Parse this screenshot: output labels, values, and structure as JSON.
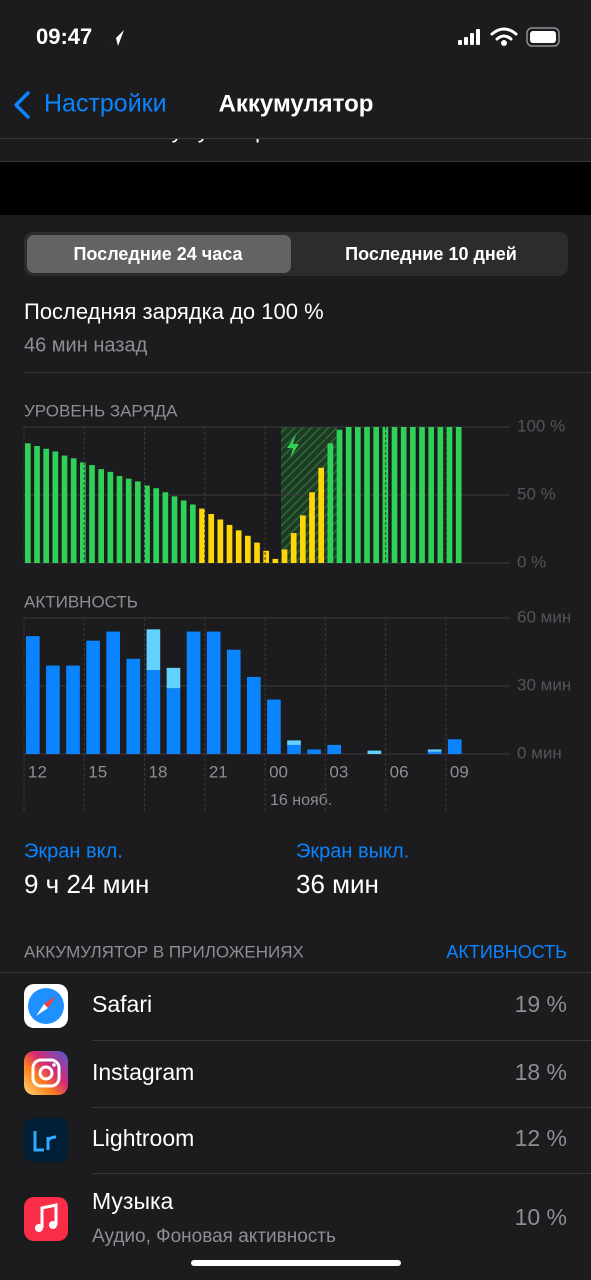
{
  "status_bar": {
    "time": "09:47"
  },
  "nav": {
    "back": "Настройки",
    "title": "Аккумулятор"
  },
  "hidden_row": "Состояние аккумулятора",
  "segments": [
    "Последние 24 часа",
    "Последние 10 дней"
  ],
  "last_charge": {
    "title": "Последняя зарядка до 100 %",
    "subtitle": "46 мин назад"
  },
  "chart_data": [
    {
      "type": "bar",
      "title": "УРОВЕНЬ ЗАРЯДА",
      "values": [
        88,
        86,
        84,
        82,
        79,
        77,
        74,
        72,
        69,
        67,
        64,
        62,
        60,
        57,
        55,
        52,
        49,
        46,
        43,
        40,
        36,
        32,
        28,
        24,
        20,
        15,
        9,
        3,
        10,
        22,
        35,
        52,
        70,
        88,
        98,
        100,
        100,
        100,
        100,
        100,
        100,
        100,
        100,
        100,
        100,
        100,
        100,
        100
      ],
      "colors": [
        "#30d158",
        "#30d158",
        "#30d158",
        "#30d158",
        "#30d158",
        "#30d158",
        "#30d158",
        "#30d158",
        "#30d158",
        "#30d158",
        "#30d158",
        "#30d158",
        "#30d158",
        "#30d158",
        "#30d158",
        "#30d158",
        "#30d158",
        "#30d158",
        "#30d158",
        "#ffd60a",
        "#ffd60a",
        "#ffd60a",
        "#ffd60a",
        "#ffd60a",
        "#ffd60a",
        "#ffd60a",
        "#ffd60a",
        "#ffd60a",
        "#ffd60a",
        "#ffd60a",
        "#ffd60a",
        "#ffd60a",
        "#ffd60a",
        "#30d158",
        "#30d158",
        "#30d158",
        "#30d158",
        "#30d158",
        "#30d158",
        "#30d158",
        "#30d158",
        "#30d158",
        "#30d158",
        "#30d158",
        "#30d158",
        "#30d158",
        "#30d158",
        "#30d158"
      ],
      "ylim": [
        0,
        100
      ],
      "yticks": [
        {
          "value": 100,
          "label": "100 %"
        },
        {
          "value": 50,
          "label": "50 %"
        },
        {
          "value": 0,
          "label": "0 %"
        }
      ],
      "grid": true
    },
    {
      "type": "stacked_bar",
      "title": "АКТИВНОСТЬ",
      "categories": [
        "12",
        null,
        null,
        "15",
        null,
        null,
        "18",
        null,
        null,
        "21",
        null,
        null,
        "00",
        null,
        null,
        "03",
        null,
        null,
        "06",
        null,
        null,
        "09"
      ],
      "series": [
        {
          "color": "#0a84ff",
          "values": [
            52,
            39,
            39,
            50,
            54,
            42,
            37,
            29,
            54,
            54,
            46,
            34,
            24,
            4,
            2,
            4,
            0,
            0,
            0,
            0,
            1,
            6.5
          ]
        },
        {
          "color": "#64d2ff",
          "values": [
            0,
            0,
            0,
            0,
            0,
            0,
            18,
            9,
            0,
            0,
            0,
            0,
            0,
            2,
            0,
            0,
            0,
            1.5,
            0,
            0,
            1,
            0
          ]
        }
      ],
      "ylim": [
        0,
        60
      ],
      "yticks": [
        {
          "value": 60,
          "label": "60 мин"
        },
        {
          "value": 30,
          "label": "30 мин"
        },
        {
          "value": 0,
          "label": "0 мин"
        }
      ],
      "grid": true,
      "annotation": "16 нояб."
    }
  ],
  "screen_time": [
    {
      "label": "Экран вкл.",
      "value": "9 ч 24 мин"
    },
    {
      "label": "Экран выкл.",
      "value": "36 мин"
    }
  ],
  "apps_header": {
    "title": "АККУМУЛЯТОР В ПРИЛОЖЕНИЯХ",
    "action": "АКТИВНОСТЬ"
  },
  "apps": [
    {
      "name": "Safari",
      "percent": "19 %"
    },
    {
      "name": "Instagram",
      "percent": "18 %"
    },
    {
      "name": "Lightroom",
      "percent": "12 %"
    },
    {
      "name": "Музыка",
      "detail": "Аудио, Фоновая активность",
      "percent": "10 %"
    }
  ]
}
